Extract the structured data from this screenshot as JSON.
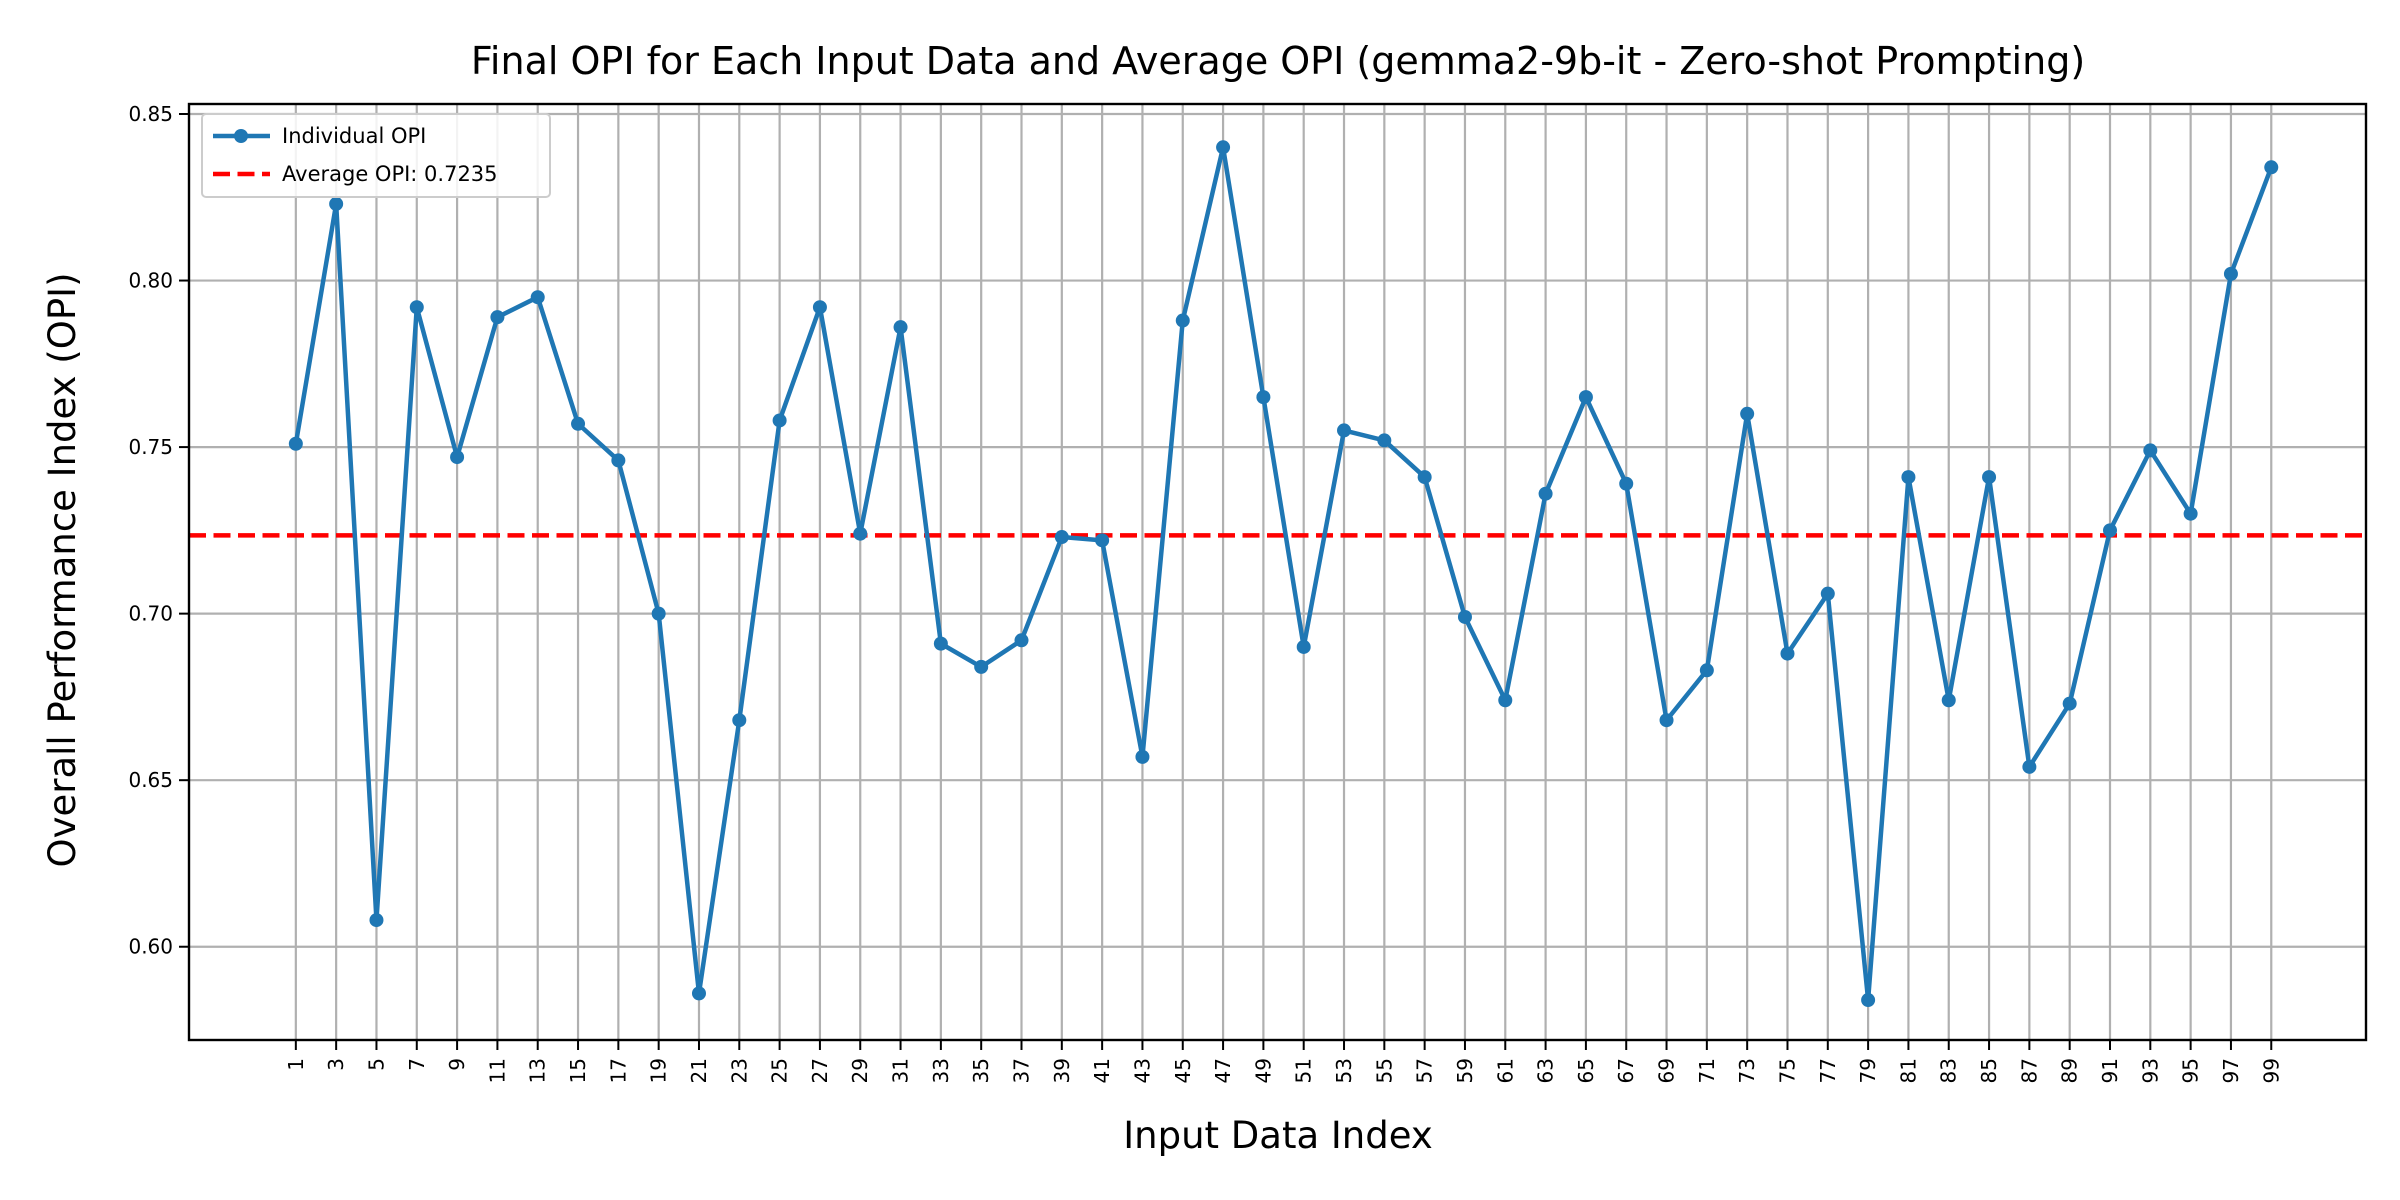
{
  "chart_data": {
    "type": "line",
    "title": "Final OPI for Each Input Data and Average OPI (gemma2-9b-it - Zero-shot Prompting)",
    "xlabel": "Input Data Index",
    "ylabel": "Overall Performance Index (OPI)",
    "ylim": [
      0.572,
      0.853
    ],
    "xlim": [
      -4.3,
      103.7
    ],
    "yticks": [
      "0.60",
      "0.65",
      "0.70",
      "0.75",
      "0.80",
      "0.85"
    ],
    "xticks": [
      "1",
      "3",
      "5",
      "7",
      "9",
      "11",
      "13",
      "15",
      "17",
      "19",
      "21",
      "23",
      "25",
      "27",
      "29",
      "31",
      "33",
      "35",
      "37",
      "39",
      "41",
      "43",
      "45",
      "47",
      "49",
      "51",
      "53",
      "55",
      "57",
      "59",
      "61",
      "63",
      "65",
      "67",
      "69",
      "71",
      "73",
      "75",
      "77",
      "79",
      "81",
      "83",
      "85",
      "87",
      "89",
      "91",
      "93",
      "95",
      "97",
      "99"
    ],
    "grid": true,
    "legend_position": "top-left",
    "series": [
      {
        "name": "Individual OPI",
        "color": "#1f77b4",
        "x": [
          1,
          3,
          5,
          7,
          9,
          11,
          13,
          15,
          17,
          19,
          21,
          23,
          25,
          27,
          29,
          31,
          33,
          35,
          37,
          39,
          41,
          43,
          45,
          47,
          49,
          51,
          53,
          55,
          57,
          59,
          61,
          63,
          65,
          67,
          69,
          71,
          73,
          75,
          77,
          79,
          81,
          83,
          85,
          87,
          89,
          91,
          93,
          95,
          97,
          99
        ],
        "values": [
          0.751,
          0.823,
          0.608,
          0.792,
          0.747,
          0.789,
          0.795,
          0.757,
          0.746,
          0.7,
          0.586,
          0.668,
          0.758,
          0.792,
          0.724,
          0.786,
          0.691,
          0.684,
          0.692,
          0.723,
          0.722,
          0.657,
          0.788,
          0.84,
          0.765,
          0.69,
          0.755,
          0.752,
          0.741,
          0.699,
          0.674,
          0.736,
          0.765,
          0.739,
          0.668,
          0.683,
          0.76,
          0.688,
          0.706,
          0.584,
          0.741,
          0.674,
          0.741,
          0.654,
          0.673,
          0.725,
          0.749,
          0.73,
          0.802,
          0.834
        ]
      }
    ],
    "reference_lines": [
      {
        "name": "Average OPI: 0.7235",
        "value": 0.7235,
        "color": "#ff0000",
        "style": "dashed"
      }
    ]
  }
}
